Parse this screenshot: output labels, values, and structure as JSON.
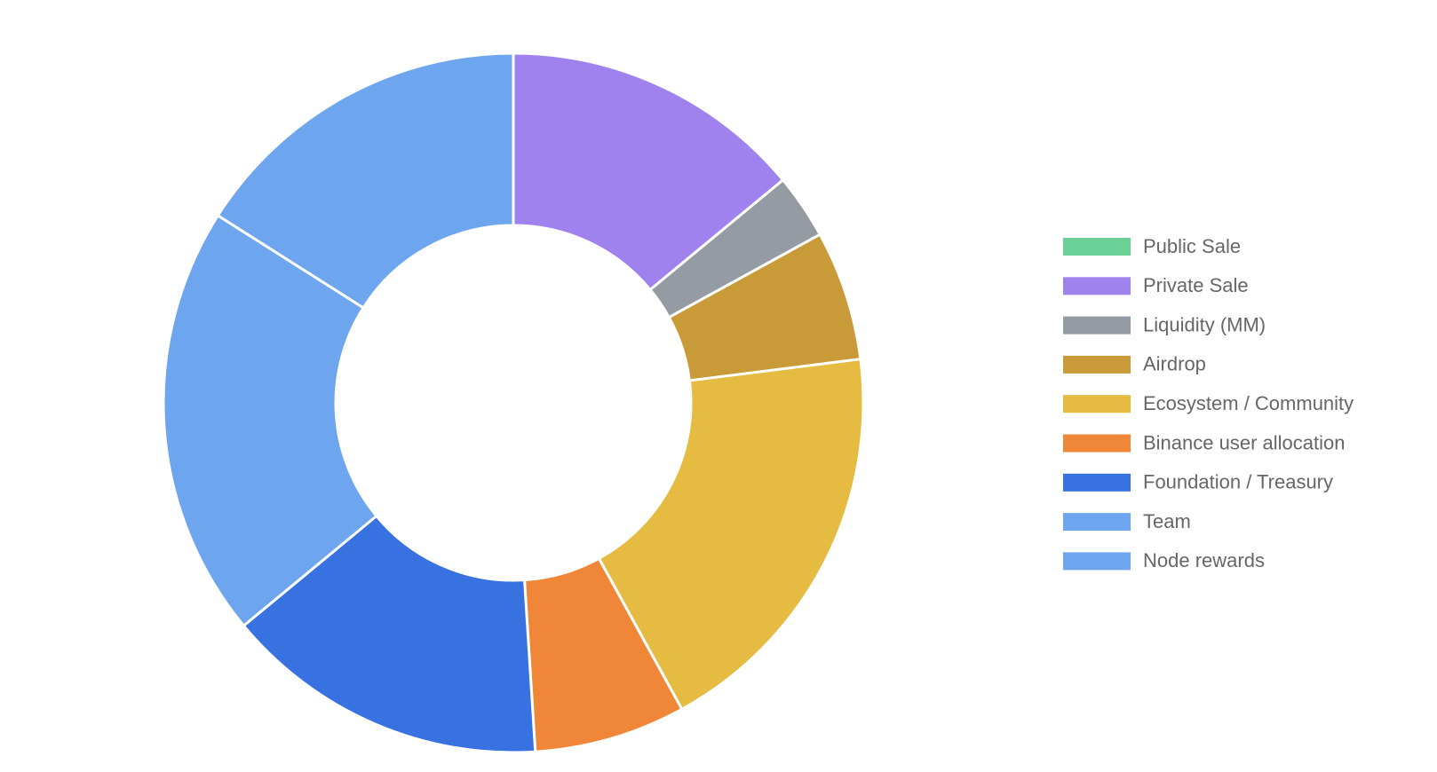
{
  "chart_data": {
    "type": "doughnut",
    "categories": [
      "Public Sale",
      "Private Sale",
      "Liquidity (MM)",
      "Airdrop",
      "Ecosystem / Community",
      "Binance user allocation",
      "Foundation / Treasury",
      "Team",
      "Node rewards"
    ],
    "values": [
      0,
      14,
      3,
      6,
      19,
      7,
      15,
      20,
      16
    ],
    "colors": [
      "#6bcf98",
      "#a082ef",
      "#959ba3",
      "#c89b38",
      "#e5bb42",
      "#ef8638",
      "#3872e0",
      "#6ea5ef",
      "#6ea5ef"
    ],
    "legend": "right"
  }
}
